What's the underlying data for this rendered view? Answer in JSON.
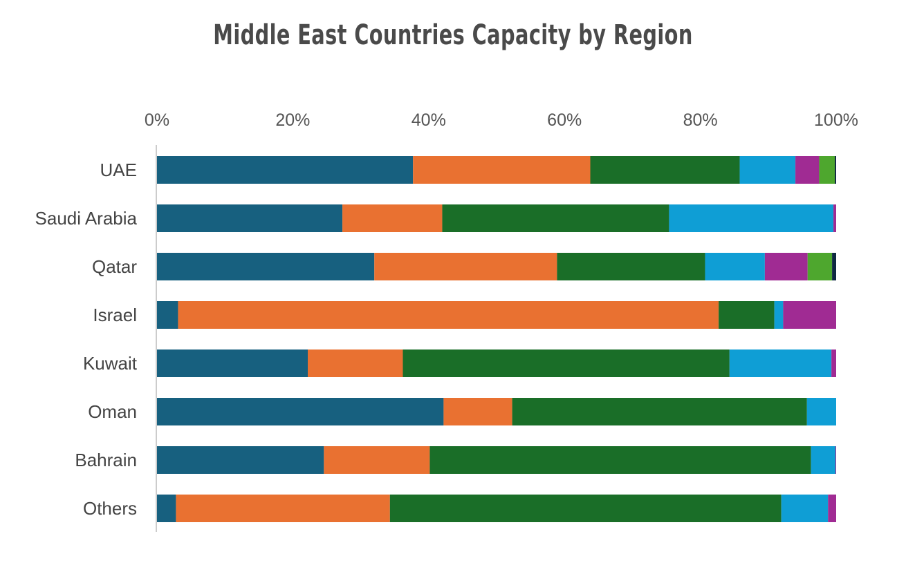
{
  "chart_data": {
    "type": "bar",
    "orientation": "horizontal",
    "stacked": true,
    "normalized": true,
    "title": "Middle East Countries Capacity by Region",
    "xlim": [
      0,
      100
    ],
    "x_ticks": [
      "0%",
      "20%",
      "40%",
      "60%",
      "80%",
      "100%"
    ],
    "x_tick_values": [
      0,
      20,
      40,
      60,
      80,
      100
    ],
    "x_axis_position": "top",
    "legend": "none",
    "grid": false,
    "categories": [
      "UAE",
      "Saudi Arabia",
      "Qatar",
      "Israel",
      "Kuwait",
      "Oman",
      "Bahrain",
      "Others"
    ],
    "series": [
      {
        "color": "#17607f",
        "values": [
          37.7,
          27.3,
          32.0,
          3.1,
          22.2,
          42.2,
          24.6,
          2.8
        ]
      },
      {
        "color": "#e97131",
        "values": [
          26.1,
          14.7,
          26.9,
          79.6,
          14.0,
          10.1,
          15.6,
          31.6
        ]
      },
      {
        "color": "#1a6e28",
        "values": [
          22.0,
          33.4,
          21.8,
          8.2,
          48.1,
          43.4,
          56.2,
          57.8
        ]
      },
      {
        "color": "#0f9ed5",
        "values": [
          8.2,
          24.2,
          8.8,
          1.3,
          15.0,
          4.3,
          3.6,
          6.9
        ]
      },
      {
        "color": "#a02b93",
        "values": [
          3.5,
          0.4,
          6.3,
          7.8,
          0.7,
          0.0,
          0.1,
          1.2
        ]
      },
      {
        "color": "#4ea72e",
        "values": [
          2.3,
          0.0,
          3.6,
          0.0,
          0.0,
          0.0,
          0.0,
          0.0
        ]
      },
      {
        "color": "#0e2841",
        "values": [
          0.2,
          0.0,
          0.6,
          0.0,
          0.0,
          0.0,
          0.0,
          0.0
        ]
      }
    ]
  }
}
